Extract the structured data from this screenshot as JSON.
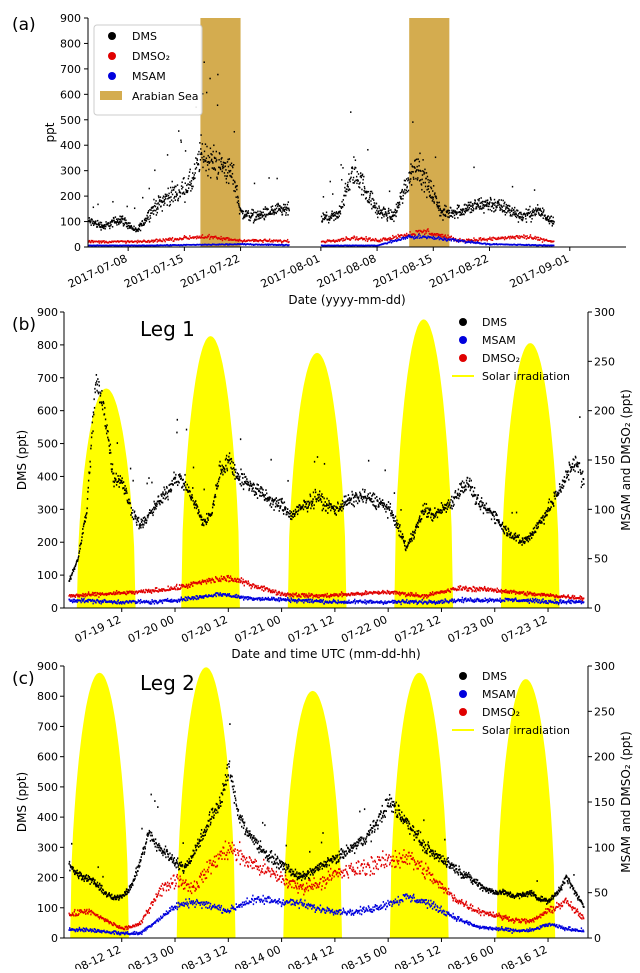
{
  "panels": [
    {
      "label": "(a)",
      "chart_data": {
        "type": "scatter",
        "title": "",
        "xlabel": "Date (yyyy-mm-dd)",
        "ylabel": "ppt",
        "xticks": [
          "2017-07-08",
          "2017-07-15",
          "2017-07-22",
          "2017-08-01",
          "2017-08-08",
          "2017-08-15",
          "2017-08-22",
          "2017-09-01"
        ],
        "xlim_days": [
          -5,
          62
        ],
        "ylim": [
          0,
          900
        ],
        "yticks": [
          0,
          100,
          200,
          300,
          400,
          500,
          600,
          700,
          800,
          900
        ],
        "shaded_spans": [
          {
            "name": "Arabian Sea",
            "from": "2017-07-17",
            "to": "2017-07-22",
            "color": "#d4ac4f"
          },
          {
            "name": "Arabian Sea",
            "from": "2017-08-12",
            "to": "2017-08-17",
            "color": "#d4ac4f"
          }
        ],
        "legend": {
          "placement": "upper-left",
          "entries": [
            "DMS",
            "DMSO₂",
            "MSAM",
            "Arabian Sea"
          ]
        },
        "series": [
          {
            "name": "DMS",
            "color": "#000000",
            "x": [
              "2017-07-03",
              "2017-07-05",
              "2017-07-07",
              "2017-07-09",
              "2017-07-11",
              "2017-07-13",
              "2017-07-15",
              "2017-07-16",
              "2017-07-17",
              "2017-07-18",
              "2017-07-19",
              "2017-07-20",
              "2017-07-21",
              "2017-07-22",
              "2017-07-24",
              "2017-07-26",
              "2017-07-28",
              "2017-07-30",
              "2017-08-01",
              "2017-08-03",
              "2017-08-05",
              "2017-08-06",
              "2017-08-08",
              "2017-08-10",
              "2017-08-12",
              "2017-08-13",
              "2017-08-14",
              "2017-08-15",
              "2017-08-16",
              "2017-08-18",
              "2017-08-20",
              "2017-08-22",
              "2017-08-24",
              "2017-08-26",
              "2017-08-28",
              "2017-08-30"
            ],
            "y": [
              100,
              80,
              110,
              60,
              150,
              200,
              230,
              260,
              370,
              340,
              330,
              310,
              280,
              130,
              120,
              140,
              145,
              150,
              110,
              120,
              300,
              250,
              140,
              120,
              280,
              330,
              250,
              200,
              130,
              140,
              160,
              170,
              150,
              120,
              140,
              100
            ]
          },
          {
            "name": "DMSO₂",
            "color": "#e00000",
            "x": [
              "2017-07-03",
              "2017-07-10",
              "2017-07-17",
              "2017-07-22",
              "2017-08-01",
              "2017-08-05",
              "2017-08-08",
              "2017-08-12",
              "2017-08-14",
              "2017-08-18",
              "2017-08-22",
              "2017-08-26",
              "2017-08-30"
            ],
            "y": [
              20,
              20,
              40,
              25,
              20,
              35,
              25,
              50,
              60,
              25,
              30,
              40,
              20
            ]
          },
          {
            "name": "MSAM",
            "color": "#0000dd",
            "x": [
              "2017-07-03",
              "2017-07-10",
              "2017-07-17",
              "2017-07-22",
              "2017-08-01",
              "2017-08-08",
              "2017-08-12",
              "2017-08-15",
              "2017-08-22",
              "2017-08-30"
            ],
            "y": [
              5,
              5,
              8,
              10,
              5,
              5,
              40,
              35,
              10,
              5
            ]
          }
        ]
      }
    },
    {
      "label": "(b)",
      "chart_data": {
        "type": "scatter",
        "title": "Leg 1",
        "xlabel": "Date and time UTC (mm-dd-hh)",
        "ylabel": "DMS (ppt)",
        "ylabel_right": "MSAM and DMSO₂ (ppt)",
        "xticks": [
          "07-19 12",
          "07-20 00",
          "07-20 12",
          "07-21 00",
          "07-21 12",
          "07-22 00",
          "07-22 12",
          "07-23 00",
          "07-23 12"
        ],
        "x_hours_from_07_19_00": [
          12,
          24,
          36,
          48,
          60,
          72,
          84,
          96,
          108
        ],
        "xlim_hours": [
          -1,
          117
        ],
        "ylim": [
          0,
          900
        ],
        "yticks": [
          0,
          100,
          200,
          300,
          400,
          500,
          600,
          700,
          800,
          900
        ],
        "ylim_right": [
          0,
          300
        ],
        "yticks_right": [
          0,
          50,
          100,
          150,
          200,
          250,
          300
        ],
        "legend": {
          "placement": "upper-right",
          "entries": [
            "DMS",
            "MSAM",
            "DMSO₂",
            "Solar irradiation"
          ]
        },
        "solar_peaks_hours": [
          8.5,
          32,
          56,
          80,
          104
        ],
        "solar_peak_heights_right": [
          222,
          275,
          258,
          292,
          268
        ],
        "series": [
          {
            "name": "DMS",
            "color": "#000000",
            "x_hours": [
              0,
              2,
              4,
              6,
              8,
              10,
              12,
              14,
              16,
              18,
              20,
              22,
              24,
              26,
              28,
              30,
              32,
              34,
              36,
              38,
              40,
              42,
              44,
              46,
              48,
              50,
              52,
              54,
              56,
              58,
              60,
              62,
              64,
              66,
              68,
              70,
              72,
              74,
              76,
              78,
              80,
              82,
              84,
              86,
              88,
              90,
              92,
              94,
              96,
              98,
              100,
              102,
              104,
              106,
              108,
              110,
              112,
              114,
              116
            ],
            "y": [
              80,
              150,
              300,
              690,
              600,
              400,
              380,
              300,
              250,
              280,
              320,
              350,
              400,
              380,
              330,
              260,
              280,
              420,
              450,
              400,
              380,
              360,
              340,
              320,
              310,
              280,
              300,
              320,
              340,
              310,
              300,
              320,
              330,
              340,
              330,
              320,
              300,
              250,
              180,
              240,
              300,
              280,
              300,
              320,
              360,
              380,
              320,
              300,
              280,
              240,
              220,
              200,
              220,
              260,
              300,
              350,
              400,
              450,
              380
            ]
          },
          {
            "name": "MSAM",
            "color": "#0000dd",
            "x_hours": [
              0,
              10,
              20,
              28,
              34,
              40,
              50,
              60,
              70,
              80,
              90,
              100,
              110,
              116
            ],
            "y_right": [
              8,
              6,
              6,
              10,
              14,
              10,
              8,
              6,
              6,
              6,
              8,
              8,
              6,
              6
            ]
          },
          {
            "name": "DMSO₂",
            "color": "#e00000",
            "x_hours": [
              0,
              8,
              16,
              24,
              32,
              36,
              40,
              48,
              56,
              64,
              72,
              80,
              88,
              96,
              104,
              110,
              116
            ],
            "y_right": [
              12,
              14,
              16,
              20,
              28,
              30,
              25,
              14,
              12,
              14,
              16,
              12,
              20,
              18,
              14,
              12,
              10
            ]
          }
        ]
      }
    },
    {
      "label": "(c)",
      "chart_data": {
        "type": "scatter",
        "title": "Leg 2",
        "xlabel": "Date and time UTC (mm-dd-hh)",
        "ylabel": "DMS (ppt)",
        "ylabel_right": "MSAM and DMSO₂ (ppt)",
        "xticks": [
          "08-12 12",
          "08-13 00",
          "08-13 12",
          "08-14 00",
          "08-14 12",
          "08-15 00",
          "08-15 12",
          "08-16 00",
          "08-16 12"
        ],
        "x_hours_from_08_12_00": [
          12,
          24,
          36,
          48,
          60,
          72,
          84,
          96,
          108
        ],
        "xlim_hours": [
          -1,
          117
        ],
        "ylim": [
          0,
          900
        ],
        "yticks": [
          0,
          100,
          200,
          300,
          400,
          500,
          600,
          700,
          800,
          900
        ],
        "ylim_right": [
          0,
          300
        ],
        "yticks_right": [
          0,
          50,
          100,
          150,
          200,
          250,
          300
        ],
        "legend": {
          "placement": "upper-right",
          "entries": [
            "DMS",
            "MSAM",
            "DMSO₂",
            "Solar irradiation"
          ]
        },
        "solar_peaks_hours": [
          7,
          31,
          55,
          79,
          103
        ],
        "solar_peak_heights_right": [
          292,
          298,
          272,
          292,
          285
        ],
        "series": [
          {
            "name": "DMS",
            "color": "#000000",
            "x_hours": [
              0,
              2,
              4,
              6,
              8,
              10,
              12,
              14,
              16,
              18,
              20,
              22,
              24,
              26,
              28,
              30,
              32,
              34,
              36,
              38,
              40,
              42,
              44,
              46,
              48,
              50,
              52,
              54,
              56,
              58,
              60,
              62,
              64,
              66,
              68,
              70,
              72,
              74,
              76,
              78,
              80,
              82,
              84,
              86,
              88,
              90,
              92,
              94,
              96,
              98,
              100,
              102,
              104,
              106,
              108,
              110,
              112,
              114,
              116
            ],
            "y": [
              240,
              210,
              200,
              180,
              150,
              130,
              140,
              170,
              250,
              350,
              300,
              280,
              250,
              230,
              280,
              340,
              400,
              450,
              560,
              420,
              350,
              320,
              280,
              260,
              240,
              220,
              200,
              210,
              230,
              250,
              260,
              280,
              300,
              320,
              350,
              400,
              450,
              420,
              380,
              350,
              300,
              280,
              260,
              240,
              220,
              200,
              180,
              160,
              150,
              150,
              140,
              140,
              150,
              130,
              120,
              150,
              200,
              150,
              100
            ]
          },
          {
            "name": "MSAM",
            "color": "#0000dd",
            "x_hours": [
              0,
              6,
              12,
              16,
              20,
              24,
              28,
              32,
              36,
              40,
              44,
              48,
              52,
              56,
              60,
              64,
              68,
              72,
              76,
              80,
              84,
              88,
              92,
              96,
              100,
              104,
              108,
              112,
              116
            ],
            "y_right": [
              10,
              8,
              5,
              5,
              20,
              35,
              40,
              35,
              30,
              40,
              42,
              40,
              38,
              32,
              30,
              28,
              32,
              38,
              45,
              40,
              30,
              20,
              12,
              10,
              8,
              8,
              15,
              10,
              8
            ]
          },
          {
            "name": "DMSO₂",
            "color": "#e00000",
            "x_hours": [
              0,
              4,
              8,
              12,
              16,
              20,
              24,
              28,
              32,
              36,
              40,
              44,
              48,
              52,
              56,
              60,
              64,
              68,
              72,
              76,
              80,
              84,
              88,
              92,
              96,
              100,
              104,
              108,
              112,
              116
            ],
            "y_right": [
              25,
              30,
              20,
              10,
              15,
              50,
              65,
              55,
              80,
              100,
              85,
              75,
              65,
              55,
              60,
              70,
              75,
              80,
              85,
              90,
              75,
              55,
              40,
              30,
              25,
              20,
              18,
              30,
              40,
              20
            ]
          }
        ]
      }
    }
  ]
}
